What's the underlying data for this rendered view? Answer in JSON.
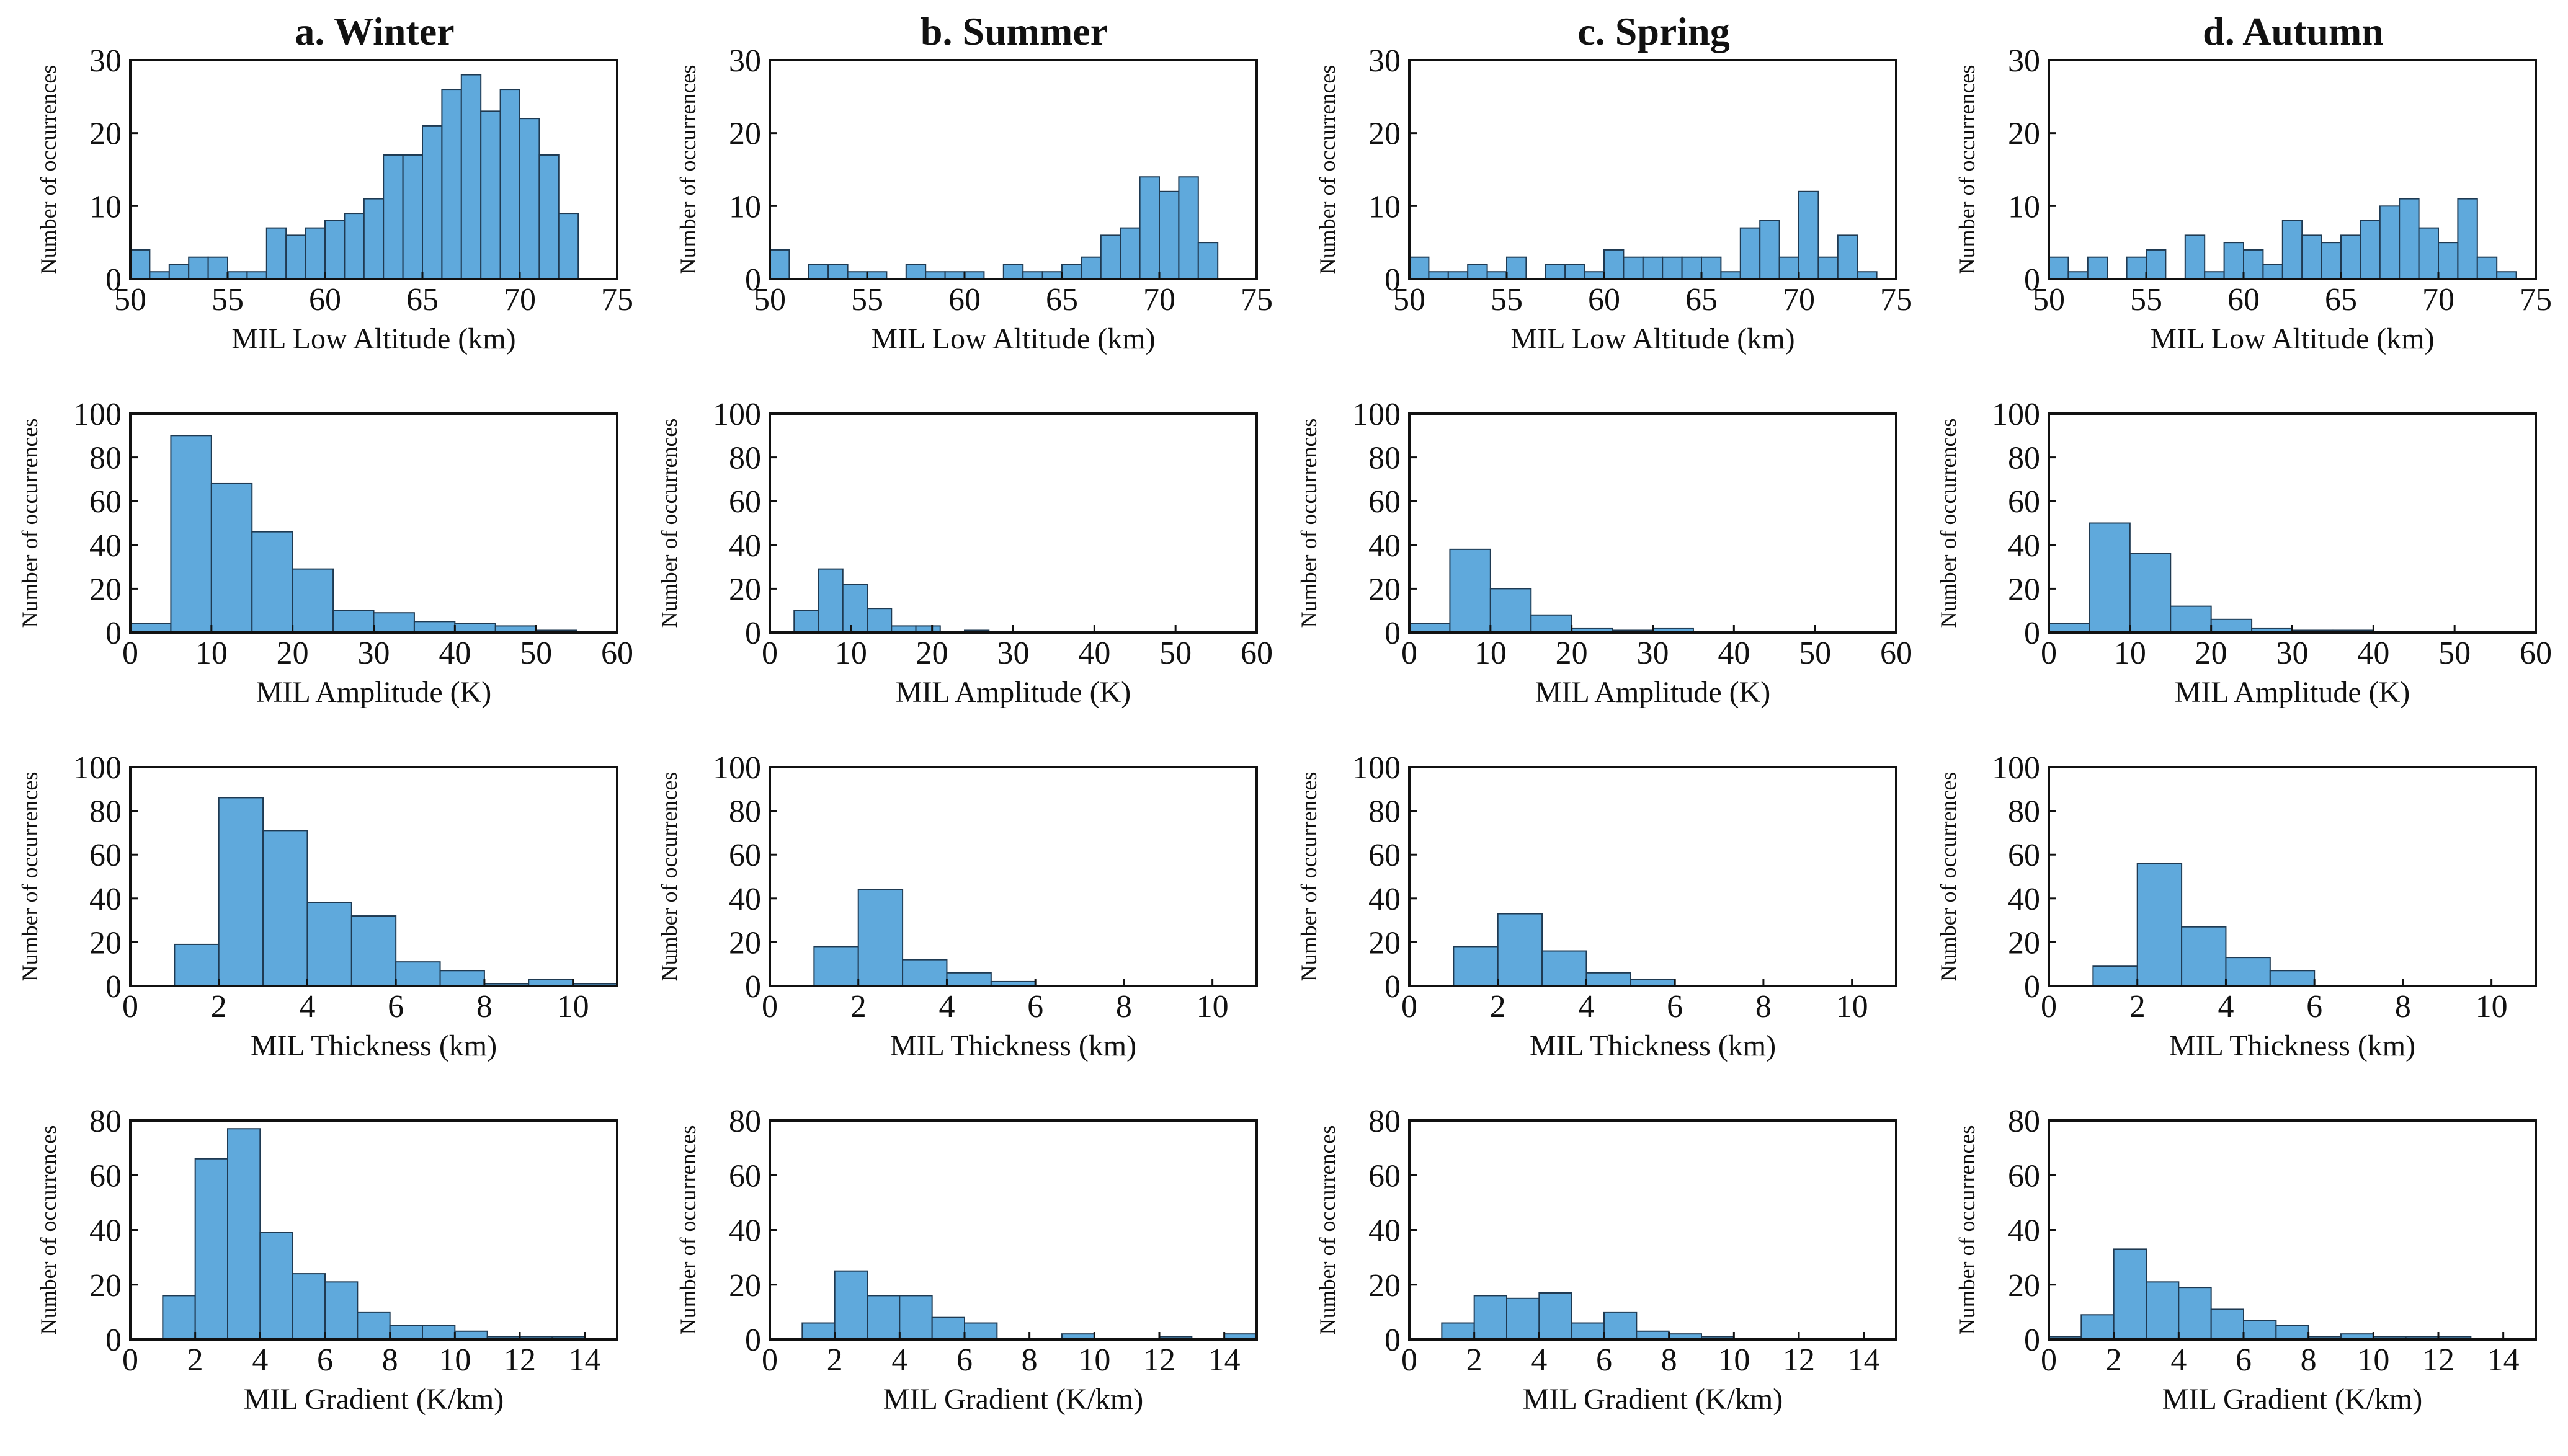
{
  "figure": {
    "ylabel": "Number of occurrences",
    "columns": [
      "a.  Winter",
      "b.  Summer",
      "c.  Spring",
      "d.  Autumn"
    ]
  },
  "chart_data": [
    {
      "type": "bar",
      "row": 0,
      "col": 0,
      "title": "a.  Winter",
      "xlabel": "MIL  Low  Altitude  (km)",
      "ylabel": "Number of occurrences",
      "xlim": [
        50,
        75
      ],
      "ylim": [
        0,
        30
      ],
      "xticks": [
        50,
        55,
        60,
        65,
        70,
        75
      ],
      "yticks": [
        0,
        10,
        20,
        30
      ],
      "bin_start": 50,
      "bin_width": 1,
      "values": [
        4,
        1,
        2,
        3,
        3,
        1,
        1,
        7,
        6,
        7,
        8,
        9,
        11,
        17,
        17,
        21,
        26,
        28,
        23,
        26,
        22,
        17,
        9
      ]
    },
    {
      "type": "bar",
      "row": 0,
      "col": 1,
      "title": "b.  Summer",
      "xlabel": "MIL  Low  Altitude  (km)",
      "ylabel": "Number of occurrences",
      "xlim": [
        50,
        75
      ],
      "ylim": [
        0,
        30
      ],
      "xticks": [
        50,
        55,
        60,
        65,
        70,
        75
      ],
      "yticks": [
        0,
        10,
        20,
        30
      ],
      "bin_start": 50,
      "bin_width": 1,
      "values": [
        4,
        0,
        2,
        2,
        1,
        1,
        0,
        2,
        1,
        1,
        1,
        0,
        2,
        1,
        1,
        2,
        3,
        6,
        7,
        14,
        12,
        14,
        5
      ]
    },
    {
      "type": "bar",
      "row": 0,
      "col": 2,
      "title": "c.  Spring",
      "xlabel": "MIL  Low  Altitude  (km)",
      "ylabel": "Number of occurrences",
      "xlim": [
        50,
        75
      ],
      "ylim": [
        0,
        30
      ],
      "xticks": [
        50,
        55,
        60,
        65,
        70,
        75
      ],
      "yticks": [
        0,
        10,
        20,
        30
      ],
      "bin_start": 50,
      "bin_width": 1,
      "values": [
        3,
        1,
        1,
        2,
        1,
        3,
        0,
        2,
        2,
        1,
        4,
        3,
        3,
        3,
        3,
        3,
        1,
        7,
        8,
        3,
        12,
        3,
        6,
        1
      ]
    },
    {
      "type": "bar",
      "row": 0,
      "col": 3,
      "title": "d.  Autumn",
      "xlabel": "MIL  Low  Altitude  (km)",
      "ylabel": "Number of occurrences",
      "xlim": [
        50,
        75
      ],
      "ylim": [
        0,
        30
      ],
      "xticks": [
        50,
        55,
        60,
        65,
        70,
        75
      ],
      "yticks": [
        0,
        10,
        20,
        30
      ],
      "bin_start": 50,
      "bin_width": 1,
      "values": [
        3,
        1,
        3,
        0,
        3,
        4,
        0,
        6,
        1,
        5,
        4,
        2,
        8,
        6,
        5,
        6,
        8,
        10,
        11,
        7,
        5,
        11,
        3,
        1
      ]
    },
    {
      "type": "bar",
      "row": 1,
      "col": 0,
      "xlabel": "MIL  Amplitude  (K)",
      "ylabel": "Number of occurrences",
      "xlim": [
        0,
        60
      ],
      "ylim": [
        0,
        100
      ],
      "xticks": [
        0,
        10,
        20,
        30,
        40,
        50,
        60
      ],
      "yticks": [
        0,
        20,
        40,
        60,
        80,
        100
      ],
      "bin_start": 0,
      "bin_width": 5,
      "values": [
        4,
        90,
        68,
        46,
        29,
        10,
        9,
        5,
        4,
        3,
        1
      ]
    },
    {
      "type": "bar",
      "row": 1,
      "col": 1,
      "xlabel": "MIL  Amplitude  (K)",
      "ylabel": "Number of occurrences",
      "xlim": [
        0,
        60
      ],
      "ylim": [
        0,
        100
      ],
      "xticks": [
        0,
        10,
        20,
        30,
        40,
        50,
        60
      ],
      "yticks": [
        0,
        20,
        40,
        60,
        80,
        100
      ],
      "bin_start": 3,
      "bin_width": 3,
      "values": [
        10,
        29,
        22,
        11,
        3,
        3,
        0,
        1
      ]
    },
    {
      "type": "bar",
      "row": 1,
      "col": 2,
      "xlabel": "MIL  Amplitude  (K)",
      "ylabel": "Number of occurrences",
      "xlim": [
        0,
        60
      ],
      "ylim": [
        0,
        100
      ],
      "xticks": [
        0,
        10,
        20,
        30,
        40,
        50,
        60
      ],
      "yticks": [
        0,
        20,
        40,
        60,
        80,
        100
      ],
      "bin_start": 0,
      "bin_width": 5,
      "values": [
        4,
        38,
        20,
        8,
        2,
        1,
        2
      ]
    },
    {
      "type": "bar",
      "row": 1,
      "col": 3,
      "xlabel": "MIL  Amplitude  (K)",
      "ylabel": "Number of occurrences",
      "xlim": [
        0,
        60
      ],
      "ylim": [
        0,
        100
      ],
      "xticks": [
        0,
        10,
        20,
        30,
        40,
        50,
        60
      ],
      "yticks": [
        0,
        20,
        40,
        60,
        80,
        100
      ],
      "bin_start": 0,
      "bin_width": 5,
      "values": [
        4,
        50,
        36,
        12,
        6,
        2,
        1,
        1
      ]
    },
    {
      "type": "bar",
      "row": 2,
      "col": 0,
      "xlabel": "MIL  Thickness  (km)",
      "ylabel": "Number of occurrences",
      "xlim": [
        0,
        11
      ],
      "ylim": [
        0,
        100
      ],
      "xticks": [
        0,
        2,
        4,
        6,
        8,
        10
      ],
      "yticks": [
        0,
        20,
        40,
        60,
        80,
        100
      ],
      "bin_start": 1,
      "bin_width": 1,
      "values": [
        19,
        86,
        71,
        38,
        32,
        11,
        7,
        1,
        3,
        1
      ]
    },
    {
      "type": "bar",
      "row": 2,
      "col": 1,
      "xlabel": "MIL  Thickness  (km)",
      "ylabel": "Number of occurrences",
      "xlim": [
        0,
        11
      ],
      "ylim": [
        0,
        100
      ],
      "xticks": [
        0,
        2,
        4,
        6,
        8,
        10
      ],
      "yticks": [
        0,
        20,
        40,
        60,
        80,
        100
      ],
      "bin_start": 1,
      "bin_width": 1,
      "values": [
        18,
        44,
        12,
        6,
        2
      ]
    },
    {
      "type": "bar",
      "row": 2,
      "col": 2,
      "xlabel": "MIL  Thickness  (km)",
      "ylabel": "Number of occurrences",
      "xlim": [
        0,
        11
      ],
      "ylim": [
        0,
        100
      ],
      "xticks": [
        0,
        2,
        4,
        6,
        8,
        10
      ],
      "yticks": [
        0,
        20,
        40,
        60,
        80,
        100
      ],
      "bin_start": 1,
      "bin_width": 1,
      "values": [
        18,
        33,
        16,
        6,
        3
      ]
    },
    {
      "type": "bar",
      "row": 2,
      "col": 3,
      "xlabel": "MIL  Thickness  (km)",
      "ylabel": "Number of occurrences",
      "xlim": [
        0,
        11
      ],
      "ylim": [
        0,
        100
      ],
      "xticks": [
        0,
        2,
        4,
        6,
        8,
        10
      ],
      "yticks": [
        0,
        20,
        40,
        60,
        80,
        100
      ],
      "bin_start": 1,
      "bin_width": 1,
      "values": [
        9,
        56,
        27,
        13,
        7
      ]
    },
    {
      "type": "bar",
      "row": 3,
      "col": 0,
      "xlabel": "MIL  Gradient  (K/km)",
      "ylabel": "Number of occurrences",
      "xlim": [
        0,
        15
      ],
      "ylim": [
        0,
        80
      ],
      "xticks": [
        0,
        2,
        4,
        6,
        8,
        10,
        12,
        14
      ],
      "yticks": [
        0,
        20,
        40,
        60,
        80
      ],
      "bin_start": 1,
      "bin_width": 1,
      "values": [
        16,
        66,
        77,
        39,
        24,
        21,
        10,
        5,
        5,
        3,
        1,
        1,
        1
      ]
    },
    {
      "type": "bar",
      "row": 3,
      "col": 1,
      "xlabel": "MIL  Gradient  (K/km)",
      "ylabel": "Number of occurrences",
      "xlim": [
        0,
        15
      ],
      "ylim": [
        0,
        80
      ],
      "xticks": [
        0,
        2,
        4,
        6,
        8,
        10,
        12,
        14
      ],
      "yticks": [
        0,
        20,
        40,
        60,
        80
      ],
      "bin_start": 1,
      "bin_width": 1,
      "values": [
        6,
        25,
        16,
        16,
        8,
        6,
        0,
        0,
        2,
        0,
        0,
        1,
        0,
        2
      ]
    },
    {
      "type": "bar",
      "row": 3,
      "col": 2,
      "xlabel": "MIL  Gradient  (K/km)",
      "ylabel": "Number of occurrences",
      "xlim": [
        0,
        15
      ],
      "ylim": [
        0,
        80
      ],
      "xticks": [
        0,
        2,
        4,
        6,
        8,
        10,
        12,
        14
      ],
      "yticks": [
        0,
        20,
        40,
        60,
        80
      ],
      "bin_start": 1,
      "bin_width": 1,
      "values": [
        6,
        16,
        15,
        17,
        6,
        10,
        3,
        2,
        1
      ]
    },
    {
      "type": "bar",
      "row": 3,
      "col": 3,
      "xlabel": "MIL  Gradient  (K/km)",
      "ylabel": "Number of occurrences",
      "xlim": [
        0,
        15
      ],
      "ylim": [
        0,
        80
      ],
      "xticks": [
        0,
        2,
        4,
        6,
        8,
        10,
        12,
        14
      ],
      "yticks": [
        0,
        20,
        40,
        60,
        80
      ],
      "bin_start": 0,
      "bin_width": 1,
      "values": [
        1,
        9,
        33,
        21,
        19,
        11,
        7,
        5,
        1,
        2,
        1,
        1,
        1
      ]
    }
  ]
}
